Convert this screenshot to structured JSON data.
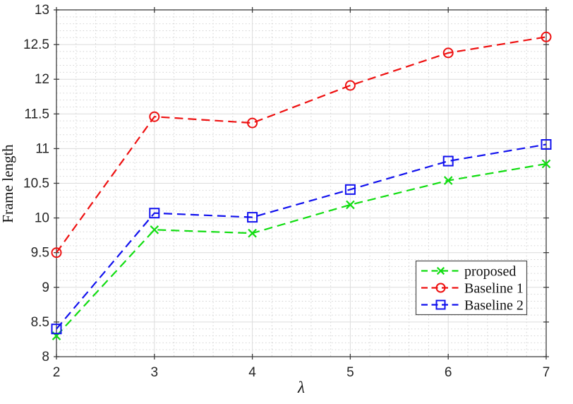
{
  "chart_data": {
    "type": "line",
    "x": [
      2,
      3,
      4,
      5,
      6,
      7
    ],
    "series": [
      {
        "name": "proposed",
        "color": "#11dd11",
        "marker": "x",
        "linestyle": "dashed",
        "values": [
          8.3,
          9.83,
          9.78,
          10.19,
          10.54,
          10.78
        ]
      },
      {
        "name": "Baseline 1",
        "color": "#ee1111",
        "marker": "circle",
        "linestyle": "dashed",
        "values": [
          9.5,
          11.46,
          11.37,
          11.91,
          12.38,
          12.61
        ]
      },
      {
        "name": "Baseline 2",
        "color": "#1111ee",
        "marker": "square",
        "linestyle": "dashed",
        "values": [
          8.4,
          10.07,
          10.01,
          10.41,
          10.82,
          11.06
        ]
      }
    ],
    "title": "",
    "xlabel": "λ",
    "ylabel": "Frame length",
    "xlim": [
      2,
      7
    ],
    "ylim": [
      8,
      13
    ],
    "x_major_step": 1,
    "x_minor_step": 0.2,
    "y_major_step": 0.5,
    "y_minor_step": 0.1,
    "x_tick_labels": [
      "2",
      "3",
      "4",
      "5",
      "6",
      "7"
    ],
    "y_tick_labels": [
      "8",
      "8.5",
      "9",
      "9.5",
      "10",
      "10.5",
      "11",
      "11.5",
      "12",
      "12.5",
      "13"
    ],
    "grid": true,
    "legend": {
      "position": "lower right",
      "entries": [
        "proposed",
        "Baseline 1",
        "Baseline 2"
      ]
    },
    "colors": {
      "background": "#ffffff",
      "axis_box": "#3d3d3d",
      "tick_label": "#262626",
      "grid_major": "#dcdcdc",
      "grid_minor": "#d2d2d2",
      "legend_border": "#4a4a4a",
      "legend_background": "#ffffff",
      "legend_text": "#111111"
    }
  }
}
